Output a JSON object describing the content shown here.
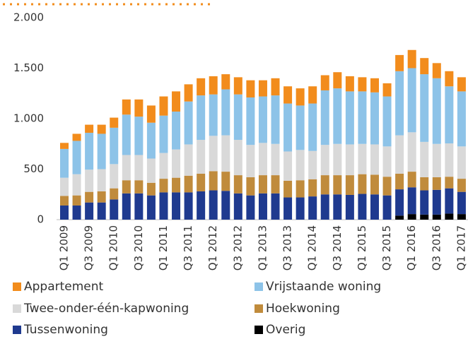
{
  "chart_data": {
    "type": "stacked_bar",
    "categories": [
      "Q1 2009",
      null,
      "Q3 2009",
      null,
      "Q1 2010",
      null,
      "Q3 2010",
      null,
      "Q1 2011",
      null,
      "Q3 2011",
      null,
      "Q1 2012",
      null,
      "Q3 2012",
      null,
      "Q1 2013",
      null,
      "Q3 2013",
      null,
      "Q1 2014",
      null,
      "Q3 2014",
      null,
      "Q1 2015",
      null,
      "Q3 2015",
      null,
      "Q1 2016",
      null,
      "Q3 2016",
      null,
      "Q1 2017"
    ],
    "series": [
      {
        "name": "Overig",
        "color": "#000000",
        "values": [
          0,
          0,
          0,
          0,
          0,
          0,
          0,
          0,
          0,
          0,
          0,
          0,
          0,
          0,
          0,
          0,
          0,
          0,
          0,
          0,
          0,
          0,
          0,
          0,
          0,
          0,
          0,
          40,
          55,
          50,
          50,
          60,
          55
        ]
      },
      {
        "name": "Tussenwoning",
        "color": "#1f3a8f",
        "values": [
          140,
          140,
          170,
          170,
          200,
          260,
          260,
          240,
          270,
          270,
          270,
          280,
          290,
          285,
          260,
          240,
          260,
          260,
          220,
          220,
          230,
          250,
          250,
          245,
          255,
          250,
          240,
          260,
          265,
          240,
          245,
          250,
          220
        ]
      },
      {
        "name": "Hoekwoning",
        "color": "#c08b3c",
        "values": [
          95,
          100,
          105,
          110,
          110,
          130,
          130,
          125,
          135,
          145,
          165,
          175,
          190,
          190,
          180,
          180,
          180,
          180,
          165,
          170,
          170,
          190,
          190,
          195,
          195,
          195,
          185,
          155,
          155,
          130,
          125,
          115,
          130
        ]
      },
      {
        "name": "Twee-onder-één-kapwoning",
        "color": "#d9d9d9",
        "values": [
          180,
          210,
          220,
          220,
          240,
          250,
          250,
          240,
          255,
          280,
          310,
          335,
          350,
          360,
          350,
          320,
          320,
          310,
          290,
          300,
          280,
          300,
          310,
          305,
          300,
          300,
          300,
          380,
          390,
          350,
          330,
          330,
          320
        ]
      },
      {
        "name": "Vrijstaande woning",
        "color": "#8dc3e8",
        "values": [
          285,
          330,
          365,
          350,
          360,
          400,
          380,
          355,
          370,
          375,
          425,
          440,
          410,
          455,
          450,
          470,
          460,
          480,
          475,
          440,
          470,
          540,
          550,
          525,
          520,
          515,
          495,
          635,
          635,
          670,
          650,
          565,
          545
        ]
      },
      {
        "name": "Appartement",
        "color": "#f28c1c",
        "values": [
          60,
          70,
          80,
          90,
          100,
          150,
          170,
          170,
          190,
          200,
          170,
          170,
          180,
          150,
          170,
          170,
          160,
          170,
          170,
          170,
          170,
          150,
          160,
          150,
          140,
          140,
          130,
          160,
          180,
          160,
          150,
          150,
          140
        ]
      }
    ],
    "ylim": [
      0,
      2000
    ],
    "yticks": [
      0,
      500,
      {
        "value": 1000,
        "label": "1.000"
      },
      {
        "value": 1500,
        "label": "1.500"
      },
      {
        "value": 2000,
        "label": "2.000"
      }
    ]
  }
}
